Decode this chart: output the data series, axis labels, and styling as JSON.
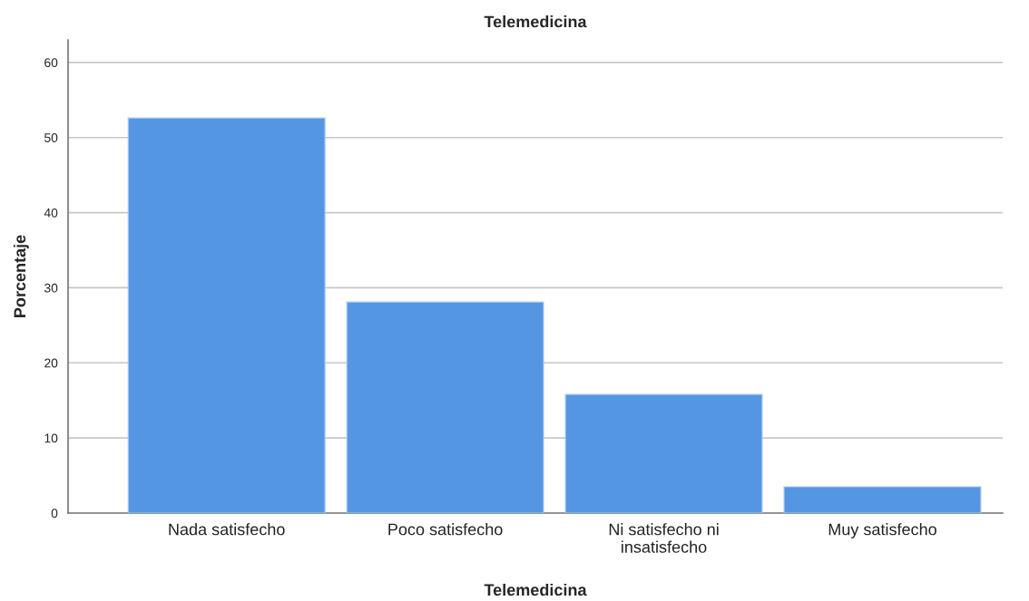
{
  "chart_data": {
    "type": "bar",
    "title": "Telemedicina",
    "xlabel": "Telemedicina",
    "ylabel": "Porcentaje",
    "categories": [
      "Nada satisfecho",
      "Poco satisfecho",
      "Ni satisfecho ni\ninsatisfecho",
      "Muy satisfecho"
    ],
    "values": [
      52.6,
      28.1,
      15.8,
      3.5
    ],
    "color": "#5596e3",
    "ylim": [
      0,
      63
    ],
    "yticks": [
      0,
      10,
      20,
      30,
      40,
      50,
      60
    ],
    "grid": "y"
  }
}
